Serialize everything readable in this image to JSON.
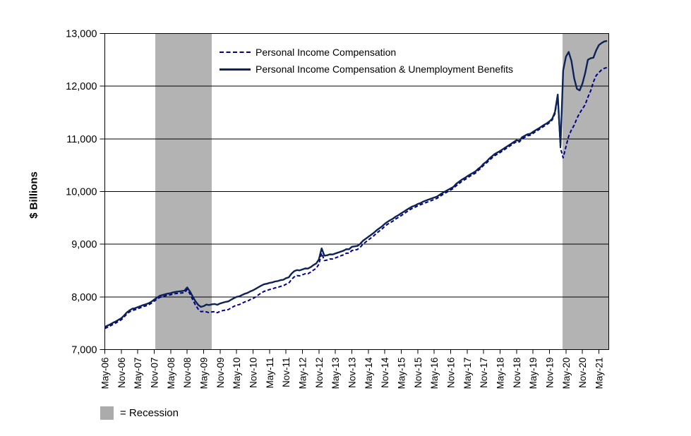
{
  "y_axis": {
    "title": "$ Billions",
    "tick_labels": [
      "7,000",
      "8,000",
      "9,000",
      "10,000",
      "11,000",
      "12,000",
      "13,000"
    ],
    "min": 7000,
    "max": 13000,
    "step": 1000
  },
  "x_axis": {
    "tick_labels": [
      "May-06",
      "Nov-06",
      "May-07",
      "Nov-07",
      "May-08",
      "Nov-08",
      "May-09",
      "Nov-09",
      "May-10",
      "Nov-10",
      "May-11",
      "Nov-11",
      "May-12",
      "Nov-12",
      "May-13",
      "Nov-13",
      "May-14",
      "Nov-14",
      "May-15",
      "Nov-15",
      "May-16",
      "Nov-16",
      "May-17",
      "Nov-17",
      "May-18",
      "Nov-18",
      "May-19",
      "Nov-19",
      "May-20",
      "Nov-20",
      "May-21"
    ],
    "months_per_tick": 6
  },
  "legend": {
    "items": [
      {
        "label": "Personal Income Compensation",
        "style": "dashed",
        "color": "#00008B"
      },
      {
        "label": "Personal Income Compensation & Unemployment Benefits",
        "style": "solid",
        "color": "#0D2255"
      }
    ]
  },
  "recession_legend": {
    "label": "= Recession",
    "swatch_color": "#ABABAB"
  },
  "chart_data": {
    "type": "line",
    "x_start_label": "May-06",
    "x_unit": "month",
    "ylim": [
      7000,
      13000
    ],
    "grid": "horizontal",
    "legend_position": "top-inside",
    "band_color": "#B3B3B3",
    "recession_bands": [
      {
        "start_month_index": 18.4,
        "end_month_index": 39.0
      },
      {
        "start_month_index": 166.8,
        "end_month_index": 184.0
      }
    ],
    "series": [
      {
        "name": "Personal Income Compensation",
        "style": "dashed",
        "color": "#00008B",
        "values": [
          7400,
          7425,
          7450,
          7480,
          7505,
          7535,
          7565,
          7615,
          7675,
          7715,
          7745,
          7755,
          7775,
          7795,
          7815,
          7830,
          7850,
          7880,
          7920,
          7955,
          7990,
          8005,
          8020,
          8030,
          8040,
          8055,
          8065,
          8070,
          8075,
          8080,
          8140,
          8060,
          7950,
          7850,
          7770,
          7720,
          7725,
          7715,
          7700,
          7715,
          7720,
          7700,
          7725,
          7740,
          7750,
          7760,
          7790,
          7820,
          7845,
          7855,
          7880,
          7905,
          7920,
          7950,
          7970,
          8000,
          8040,
          8075,
          8105,
          8120,
          8140,
          8150,
          8170,
          8180,
          8200,
          8210,
          8240,
          8260,
          8330,
          8380,
          8405,
          8400,
          8420,
          8440,
          8440,
          8470,
          8510,
          8540,
          8620,
          8830,
          8690,
          8700,
          8720,
          8720,
          8740,
          8760,
          8780,
          8800,
          8830,
          8830,
          8880,
          8890,
          8900,
          8940,
          9000,
          9040,
          9080,
          9120,
          9160,
          9210,
          9250,
          9290,
          9340,
          9380,
          9410,
          9440,
          9480,
          9510,
          9545,
          9580,
          9615,
          9650,
          9680,
          9700,
          9730,
          9750,
          9770,
          9790,
          9810,
          9830,
          9850,
          9870,
          9905,
          9940,
          9970,
          10000,
          10030,
          10060,
          10110,
          10150,
          10190,
          10220,
          10255,
          10290,
          10320,
          10350,
          10400,
          10440,
          10500,
          10540,
          10590,
          10635,
          10680,
          10710,
          10740,
          10775,
          10810,
          10845,
          10880,
          10915,
          10950,
          10940,
          11000,
          11030,
          11060,
          11070,
          11105,
          11140,
          11170,
          11205,
          11240,
          11270,
          11310,
          11360,
          11480,
          11800,
          10820,
          10640,
          10850,
          11050,
          11170,
          11260,
          11390,
          11490,
          11570,
          11650,
          11790,
          11910,
          12080,
          12200,
          12260,
          12310,
          12340,
          12355
        ]
      },
      {
        "name": "Personal Income Compensation & Unemployment Benefits",
        "style": "solid",
        "color": "#0D2255",
        "values": [
          7430,
          7455,
          7480,
          7510,
          7535,
          7565,
          7595,
          7645,
          7705,
          7745,
          7775,
          7785,
          7805,
          7825,
          7845,
          7860,
          7880,
          7910,
          7950,
          7985,
          8020,
          8035,
          8050,
          8062,
          8072,
          8087,
          8097,
          8104,
          8110,
          8118,
          8180,
          8105,
          8010,
          7920,
          7850,
          7810,
          7825,
          7855,
          7845,
          7860,
          7865,
          7850,
          7875,
          7890,
          7905,
          7915,
          7945,
          7975,
          8000,
          8010,
          8035,
          8060,
          8075,
          8105,
          8125,
          8155,
          8185,
          8215,
          8240,
          8250,
          8265,
          8275,
          8292,
          8300,
          8318,
          8325,
          8355,
          8372,
          8440,
          8488,
          8510,
          8503,
          8521,
          8540,
          8538,
          8566,
          8605,
          8633,
          8712,
          8920,
          8782,
          8790,
          8808,
          8806,
          8824,
          8842,
          8860,
          8878,
          8906,
          8904,
          8952,
          8960,
          8968,
          9006,
          9064,
          9102,
          9140,
          9178,
          9216,
          9264,
          9302,
          9340,
          9388,
          9426,
          9458,
          9486,
          9525,
          9553,
          9587,
          9620,
          9654,
          9687,
          9716,
          9734,
          9763,
          9781,
          9810,
          9828,
          9848,
          9867,
          9886,
          9905,
          9939,
          9973,
          10002,
          10031,
          10060,
          10089,
          10146,
          10185,
          10224,
          10253,
          10288,
          10322,
          10351,
          10380,
          10430,
          10469,
          10528,
          10567,
          10622,
          10666,
          10711,
          10740,
          10770,
          10804,
          10838,
          10872,
          10906,
          10940,
          10974,
          10962,
          11030,
          11059,
          11088,
          11097,
          11133,
          11167,
          11196,
          11231,
          11265,
          11294,
          11333,
          11382,
          11512,
          11840,
          10870,
          12300,
          12560,
          12650,
          12480,
          12150,
          11950,
          11920,
          12050,
          12250,
          12500,
          12530,
          12540,
          12680,
          12780,
          12820,
          12850,
          12860
        ]
      }
    ]
  }
}
